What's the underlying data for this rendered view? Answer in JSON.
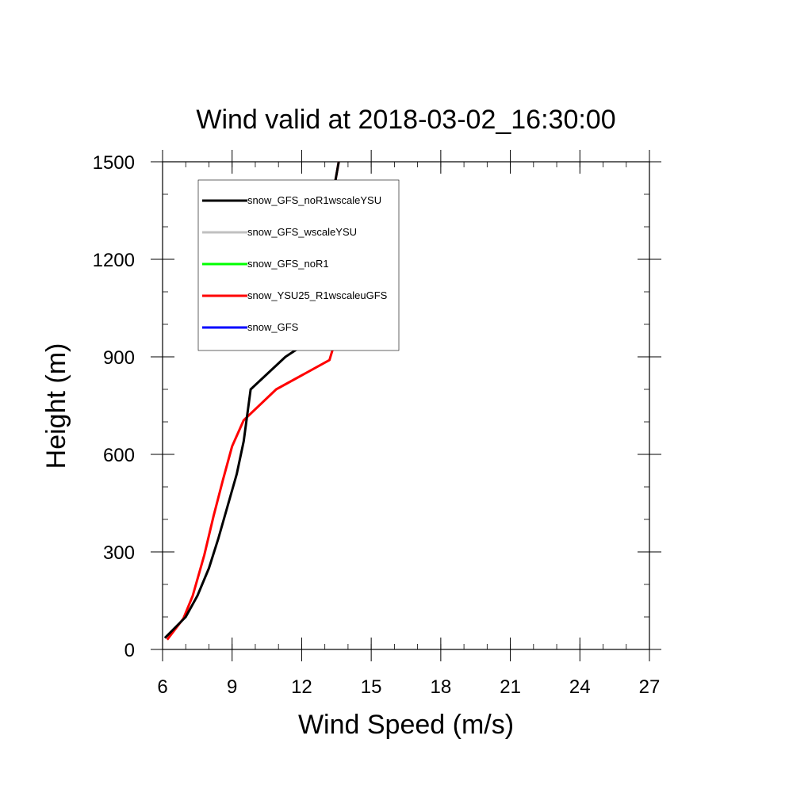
{
  "chart_data": {
    "type": "line",
    "title": "Wind valid at 2018-03-02_16:30:00",
    "xlabel": "Wind Speed (m/s)",
    "ylabel": "Height (m)",
    "xlim": [
      6,
      27
    ],
    "ylim": [
      0,
      1500
    ],
    "xticks": [
      6,
      9,
      12,
      15,
      18,
      21,
      24,
      27
    ],
    "yticks": [
      0,
      300,
      600,
      900,
      1200,
      1500
    ],
    "x_minor_step": 1,
    "y_minor_step": 100,
    "grid": false,
    "legend_position": "top-left",
    "series": [
      {
        "name": "snow_GFS_noR1wscaleYSU",
        "color": "#000000",
        "points": [
          [
            6.1,
            35
          ],
          [
            7.0,
            100
          ],
          [
            7.5,
            165
          ],
          [
            8.0,
            250
          ],
          [
            8.4,
            340
          ],
          [
            8.8,
            440
          ],
          [
            9.2,
            540
          ],
          [
            9.5,
            640
          ],
          [
            9.8,
            800
          ],
          [
            11.3,
            900
          ],
          [
            13.1,
            985
          ],
          [
            13.05,
            1085
          ],
          [
            13.0,
            1200
          ],
          [
            13.1,
            1300
          ],
          [
            13.6,
            1500
          ]
        ]
      },
      {
        "name": "snow_GFS_wscaleYSU",
        "color": "#c0c0c0",
        "points": []
      },
      {
        "name": "snow_GFS_noR1",
        "color": "#00ff00",
        "points": []
      },
      {
        "name": "snow_YSU25_R1wscaleuGFS",
        "color": "#ff0000",
        "points": [
          [
            6.2,
            30
          ],
          [
            6.9,
            95
          ],
          [
            7.3,
            165
          ],
          [
            7.8,
            290
          ],
          [
            8.2,
            410
          ],
          [
            8.6,
            520
          ],
          [
            9.0,
            625
          ],
          [
            9.5,
            705
          ],
          [
            10.9,
            800
          ],
          [
            13.2,
            890
          ],
          [
            13.6,
            985
          ],
          [
            13.3,
            1100
          ],
          [
            13.0,
            1180
          ],
          [
            13.1,
            1300
          ],
          [
            13.6,
            1500
          ]
        ]
      },
      {
        "name": "snow_GFS",
        "color": "#0000ff",
        "points": []
      }
    ]
  }
}
